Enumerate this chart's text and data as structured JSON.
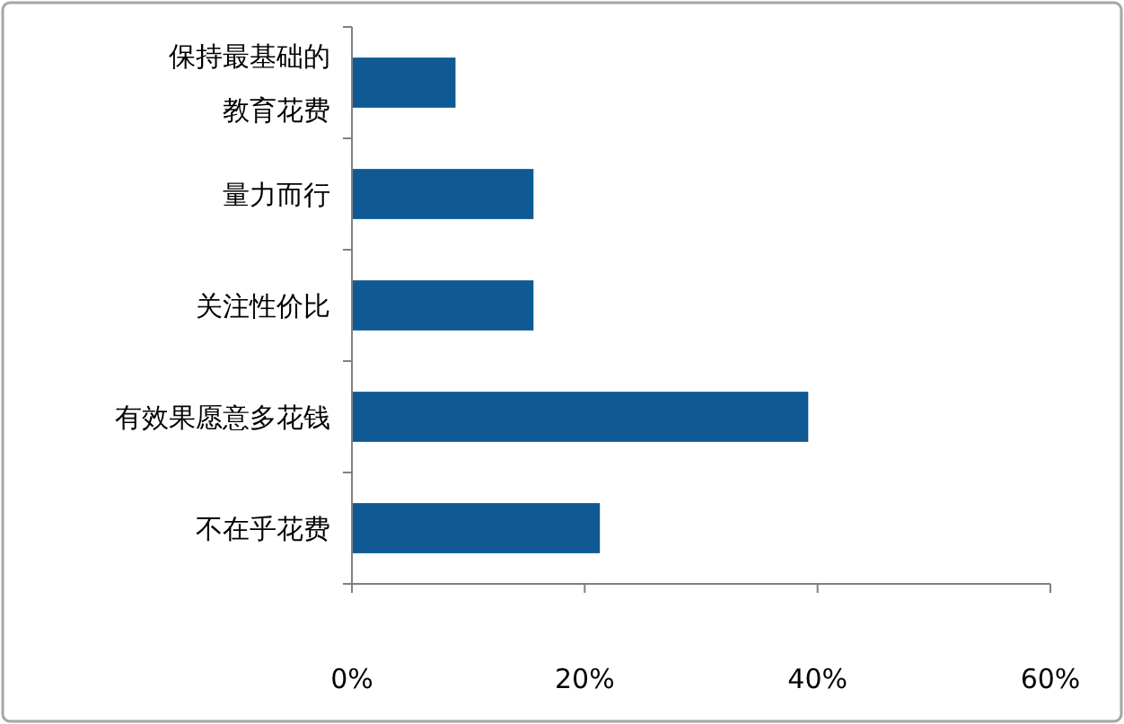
{
  "chart_data": {
    "type": "bar",
    "orientation": "horizontal",
    "categories": [
      "保持最基础的教育花费",
      "量力而行",
      "关注性价比",
      "有效果愿意多花钱",
      "不在乎花费"
    ],
    "values": [
      8.9,
      15.6,
      15.6,
      39.2,
      21.3
    ],
    "color": "#0f5a94",
    "xlim": [
      0,
      60
    ],
    "xticks": [
      {
        "value": 0,
        "label": "0%"
      },
      {
        "value": 20,
        "label": "20%"
      },
      {
        "value": 40,
        "label": "40%"
      },
      {
        "value": 60,
        "label": "60%"
      }
    ],
    "grid": false
  }
}
